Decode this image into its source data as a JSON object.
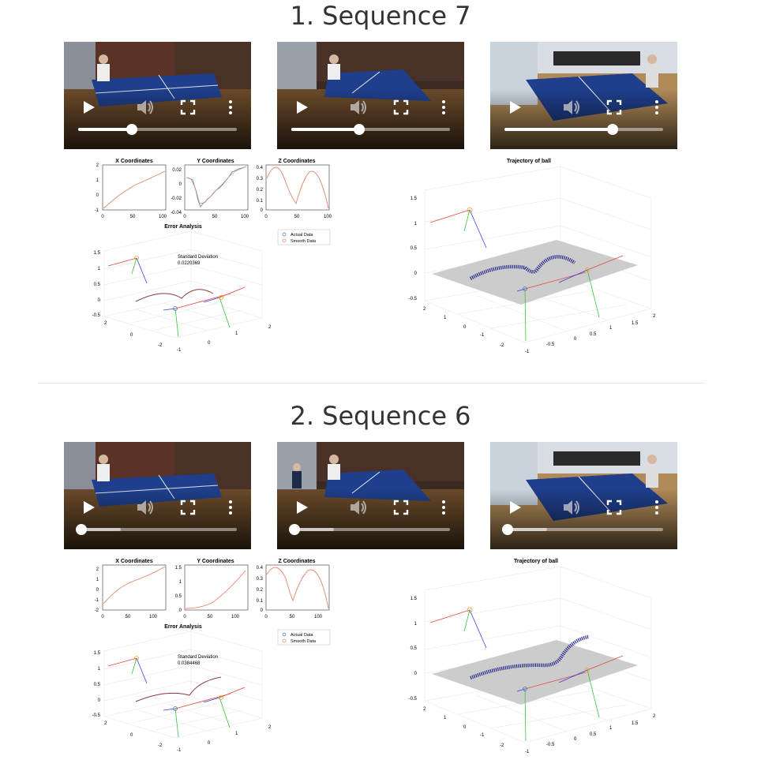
{
  "sequences": [
    {
      "title": "1. Sequence 7",
      "videos": [
        {
          "progress": 0.34,
          "buffered": 0.0
        },
        {
          "progress": 0.43,
          "buffered": 0.0
        },
        {
          "progress": 0.68,
          "buffered": 0.0
        }
      ],
      "plots": {
        "x_title": "X Coordinates",
        "y_title": "Y Coordinates",
        "z_title": "Z Coordinates",
        "error_title": "Error Analysis",
        "trajectory_title": "Trajectory of ball",
        "std_label": "Standard Deviation",
        "std_value": "0.0220369",
        "legend_actual": "Actual Data",
        "legend_smooth": "Smooth Data"
      }
    },
    {
      "title": "2. Sequence 6",
      "videos": [
        {
          "progress": 0.02,
          "buffered": 0.27
        },
        {
          "progress": 0.02,
          "buffered": 0.27
        },
        {
          "progress": 0.02,
          "buffered": 0.27
        }
      ],
      "plots": {
        "x_title": "X Coordinates",
        "y_title": "Y Coordinates",
        "z_title": "Z Coordinates",
        "error_title": "Error Analysis",
        "trajectory_title": "Trajectory of ball",
        "std_label": "Standard Deviation",
        "std_value": "0.0384468",
        "legend_actual": "Actual Data",
        "legend_smooth": "Smooth Data"
      }
    }
  ],
  "chart_data": [
    {
      "type": "line",
      "title": "X Coordinates",
      "sequence": "1. Sequence 7",
      "x": [
        0,
        50,
        100
      ],
      "y": [
        -1,
        0.5,
        1.5
      ],
      "xlim": [
        0,
        100
      ],
      "ylim": [
        -1,
        2
      ],
      "xticks": [
        "0",
        "50",
        "100"
      ],
      "yticks": [
        "-1",
        "0",
        "1",
        "2"
      ]
    },
    {
      "type": "line",
      "title": "Y Coordinates",
      "sequence": "1. Sequence 7",
      "x": [
        0,
        15,
        30,
        45,
        60,
        80,
        100
      ],
      "y": [
        0.01,
        0.005,
        -0.035,
        -0.025,
        -0.01,
        0.005,
        0.018
      ],
      "xlim": [
        0,
        100
      ],
      "ylim": [
        -0.04,
        0.02
      ],
      "xticks": [
        "0",
        "50",
        "100"
      ],
      "yticks": [
        "-0.04",
        "-0.02",
        "0",
        "0.02"
      ]
    },
    {
      "type": "line",
      "title": "Z Coordinates",
      "sequence": "1. Sequence 7",
      "x": [
        0,
        15,
        30,
        50,
        70,
        85,
        100
      ],
      "y": [
        0.3,
        0.38,
        0.25,
        0.05,
        0.33,
        0.25,
        0.0
      ],
      "xlim": [
        0,
        100
      ],
      "ylim": [
        0,
        0.4
      ],
      "xticks": [
        "0",
        "50",
        "100"
      ],
      "yticks": [
        "0",
        "0.1",
        "0.2",
        "0.3",
        "0.4"
      ]
    },
    {
      "type": "line",
      "title": "X Coordinates",
      "sequence": "2. Sequence 6",
      "x": [
        0,
        60,
        120
      ],
      "y": [
        -1.5,
        0.8,
        2.3
      ],
      "xlim": [
        0,
        120
      ],
      "ylim": [
        -2,
        2.5
      ],
      "xticks": [
        "0",
        "50",
        "100"
      ],
      "yticks": [
        "-2",
        "-1",
        "0",
        "1",
        "2"
      ]
    },
    {
      "type": "line",
      "title": "Y Coordinates",
      "sequence": "2. Sequence 6",
      "x": [
        0,
        40,
        80,
        120
      ],
      "y": [
        0.0,
        0.15,
        0.55,
        1.4
      ],
      "xlim": [
        0,
        120
      ],
      "ylim": [
        0,
        1.5
      ],
      "xticks": [
        "0",
        "50",
        "100"
      ],
      "yticks": [
        "0",
        "0.5",
        "1",
        "1.5"
      ]
    },
    {
      "type": "line",
      "title": "Z Coordinates",
      "sequence": "2. Sequence 6",
      "x": [
        0,
        15,
        30,
        50,
        70,
        90,
        120
      ],
      "y": [
        0.3,
        0.38,
        0.25,
        0.08,
        0.33,
        0.25,
        0.0
      ],
      "xlim": [
        0,
        120
      ],
      "ylim": [
        0,
        0.4
      ],
      "xticks": [
        "0",
        "50",
        "100"
      ],
      "yticks": [
        "0",
        "0.1",
        "0.2",
        "0.3",
        "0.4"
      ]
    }
  ]
}
